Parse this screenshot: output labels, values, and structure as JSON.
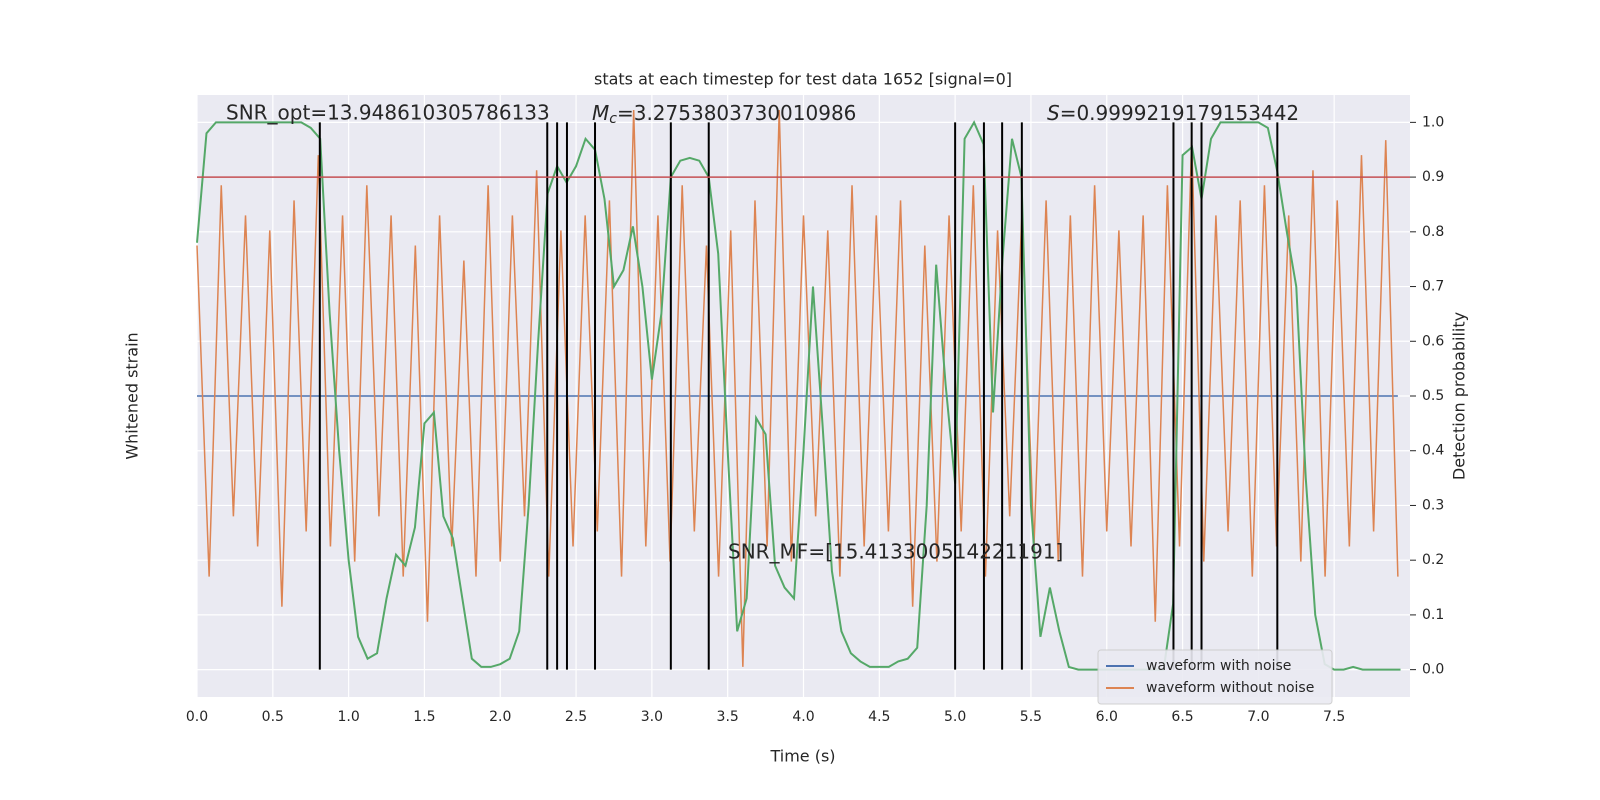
{
  "chart_data": {
    "type": "line",
    "title": "stats at each timestep for test data 1652 [signal=0]",
    "xlabel": "Time (s)",
    "ylabel": "Whitened strain",
    "y2label": "Detection probability",
    "xlim": [
      0,
      8
    ],
    "ylim": [
      -1,
      1
    ],
    "y2lim": [
      -0.05,
      1.05
    ],
    "xticks": [
      {
        "value": 0,
        "label": "0.0"
      },
      0.5,
      {
        "value": 1,
        "label": "1.0"
      },
      1.5,
      {
        "value": 2,
        "label": "2.0"
      },
      2.5,
      {
        "value": 3,
        "label": "3.0"
      },
      3.5,
      {
        "value": 4,
        "label": "4.0"
      },
      4.5,
      {
        "value": 5,
        "label": "5.0"
      },
      5.5,
      {
        "value": 6,
        "label": "6.0"
      },
      6.5,
      {
        "value": 7,
        "label": "7.0"
      },
      7.5
    ],
    "y2ticks": [
      {
        "value": 0,
        "label": "0.0"
      },
      0.1,
      0.2,
      0.3,
      0.4,
      0.5,
      0.6,
      0.7,
      0.8,
      0.9,
      {
        "value": 1,
        "label": "1.0"
      }
    ],
    "grid": true,
    "legend": "lower right",
    "series": [
      {
        "name": "waveform with noise",
        "color": "#4c72b0",
        "x": [
          0,
          7.92
        ],
        "values": [
          0,
          0
        ]
      },
      {
        "name": "waveform without noise",
        "color": "#dd8452",
        "x": [
          0,
          0.08,
          0.16,
          0.24,
          0.32,
          0.4,
          0.48,
          0.56,
          0.64,
          0.72,
          0.8,
          0.88,
          0.96,
          1.04,
          1.12,
          1.2,
          1.28,
          1.36,
          1.44,
          1.52,
          1.6,
          1.68,
          1.76,
          1.84,
          1.92,
          2,
          2.08,
          2.16,
          2.24,
          2.32,
          2.4,
          2.48,
          2.56,
          2.64,
          2.72,
          2.8,
          2.88,
          2.96,
          3.04,
          3.12,
          3.2,
          3.28,
          3.36,
          3.44,
          3.52,
          3.6,
          3.68,
          3.76,
          3.84,
          3.92,
          4,
          4.08,
          4.16,
          4.24,
          4.32,
          4.4,
          4.48,
          4.56,
          4.64,
          4.72,
          4.8,
          4.88,
          4.96,
          5.04,
          5.12,
          5.2,
          5.28,
          5.36,
          5.44,
          5.52,
          5.6,
          5.68,
          5.76,
          5.84,
          5.92,
          6,
          6.08,
          6.16,
          6.24,
          6.32,
          6.4,
          6.48,
          6.56,
          6.64,
          6.72,
          6.8,
          6.88,
          6.96,
          7.04,
          7.12,
          7.2,
          7.28,
          7.36,
          7.44,
          7.52,
          7.6,
          7.68,
          7.76,
          7.84,
          7.92
        ],
        "values": [
          0.5,
          -0.6,
          0.7,
          -0.4,
          0.6,
          -0.5,
          0.55,
          -0.7,
          0.65,
          -0.45,
          0.8,
          -0.5,
          0.6,
          -0.55,
          0.7,
          -0.4,
          0.6,
          -0.6,
          0.5,
          -0.75,
          0.6,
          -0.5,
          0.45,
          -0.6,
          0.7,
          -0.55,
          0.6,
          -0.4,
          0.75,
          -0.6,
          0.55,
          -0.5,
          0.6,
          -0.45,
          0.65,
          -0.6,
          0.95,
          -0.5,
          0.6,
          -0.55,
          0.7,
          -0.45,
          0.5,
          -0.6,
          0.55,
          -0.9,
          0.65,
          -0.5,
          0.95,
          -0.55,
          0.6,
          -0.4,
          0.55,
          -0.6,
          0.7,
          -0.5,
          0.6,
          -0.45,
          0.65,
          -0.7,
          0.5,
          -0.55,
          0.6,
          -0.45,
          0.7,
          -0.6,
          0.55,
          -0.4,
          0.6,
          -0.5,
          0.65,
          -0.55,
          0.6,
          -0.6,
          0.7,
          -0.45,
          0.55,
          -0.5,
          0.6,
          -0.75,
          0.7,
          -0.5,
          0.85,
          -0.55,
          0.6,
          -0.45,
          0.65,
          -0.6,
          0.7,
          -0.5,
          0.6,
          -0.55,
          0.75,
          -0.6,
          0.65,
          -0.5,
          0.8,
          -0.45,
          0.85,
          -0.6
        ]
      },
      {
        "color": "#55a868",
        "axis": "y2",
        "x": [
          0,
          0.0625,
          0.125,
          0.1875,
          0.25,
          0.3125,
          0.375,
          0.4375,
          0.5,
          0.5625,
          0.625,
          0.6875,
          0.75,
          0.8125,
          0.875,
          0.9375,
          1,
          1.0625,
          1.125,
          1.1875,
          1.25,
          1.3125,
          1.375,
          1.4375,
          1.5,
          1.5625,
          1.625,
          1.6875,
          1.75,
          1.8125,
          1.875,
          1.9375,
          2,
          2.0625,
          2.125,
          2.1875,
          2.25,
          2.3125,
          2.375,
          2.4375,
          2.5,
          2.5625,
          2.625,
          2.6875,
          2.75,
          2.8125,
          2.875,
          2.9375,
          3,
          3.0625,
          3.125,
          3.1875,
          3.25,
          3.3125,
          3.375,
          3.4375,
          3.5,
          3.5625,
          3.625,
          3.6875,
          3.75,
          3.8125,
          3.875,
          3.9375,
          4,
          4.0625,
          4.125,
          4.1875,
          4.25,
          4.3125,
          4.375,
          4.4375,
          4.5,
          4.5625,
          4.625,
          4.6875,
          4.75,
          4.8125,
          4.875,
          4.9375,
          5,
          5.0625,
          5.125,
          5.1875,
          5.25,
          5.3125,
          5.375,
          5.4375,
          5.5,
          5.5625,
          5.625,
          5.6875,
          5.75,
          5.8125,
          5.875,
          5.9375,
          6,
          6.0625,
          6.125,
          6.1875,
          6.25,
          6.3125,
          6.375,
          6.4375,
          6.5,
          6.5625,
          6.625,
          6.6875,
          6.75,
          6.8125,
          6.875,
          6.9375,
          7,
          7.0625,
          7.125,
          7.1875,
          7.25,
          7.3125,
          7.375,
          7.4375,
          7.5,
          7.5625,
          7.625,
          7.6875,
          7.75,
          7.8125,
          7.875,
          7.9375
        ],
        "values": [
          0.78,
          0.98,
          1,
          1,
          1,
          1,
          1,
          1,
          1,
          1,
          1,
          1,
          0.99,
          0.97,
          0.65,
          0.4,
          0.2,
          0.06,
          0.02,
          0.03,
          0.13,
          0.21,
          0.19,
          0.26,
          0.45,
          0.47,
          0.28,
          0.24,
          0.13,
          0.02,
          0.005,
          0.005,
          0.01,
          0.02,
          0.07,
          0.3,
          0.6,
          0.87,
          0.92,
          0.89,
          0.92,
          0.97,
          0.95,
          0.86,
          0.7,
          0.73,
          0.81,
          0.7,
          0.53,
          0.65,
          0.9,
          0.93,
          0.935,
          0.93,
          0.9,
          0.76,
          0.4,
          0.07,
          0.13,
          0.46,
          0.43,
          0.19,
          0.15,
          0.13,
          0.4,
          0.7,
          0.45,
          0.18,
          0.07,
          0.03,
          0.015,
          0.005,
          0.005,
          0.005,
          0.015,
          0.02,
          0.04,
          0.3,
          0.74,
          0.52,
          0.34,
          0.97,
          1,
          0.96,
          0.47,
          0.75,
          0.97,
          0.9,
          0.3,
          0.06,
          0.15,
          0.07,
          0.005,
          0,
          0,
          0,
          0,
          0,
          0,
          0,
          0,
          0,
          0,
          0.12,
          0.94,
          0.955,
          0.86,
          0.97,
          1,
          1,
          1,
          1,
          1,
          0.99,
          0.91,
          0.8,
          0.7,
          0.35,
          0.1,
          0.01,
          0,
          0,
          0.005,
          0,
          0,
          0,
          0,
          0
        ]
      }
    ],
    "hlines": [
      {
        "value": 0.9,
        "color": "#c44e52"
      }
    ],
    "vlines": [
      0.81,
      2.31,
      2.375,
      2.44,
      2.625,
      3.125,
      3.375,
      5.0,
      5.19,
      5.31,
      5.44,
      6.44,
      6.56,
      6.625,
      7.125
    ],
    "vline_range": [
      0,
      1
    ],
    "annotations": [
      {
        "text": "SNR_opt=13.948610305786133"
      },
      {
        "symbol": "M",
        "subscript": "c",
        "text": "=3.2753803730010986"
      },
      {
        "symbol": "S",
        "text": "=0.9999219179153442"
      },
      {
        "text": "SNR_MF=[15.413300514221191]"
      }
    ]
  }
}
